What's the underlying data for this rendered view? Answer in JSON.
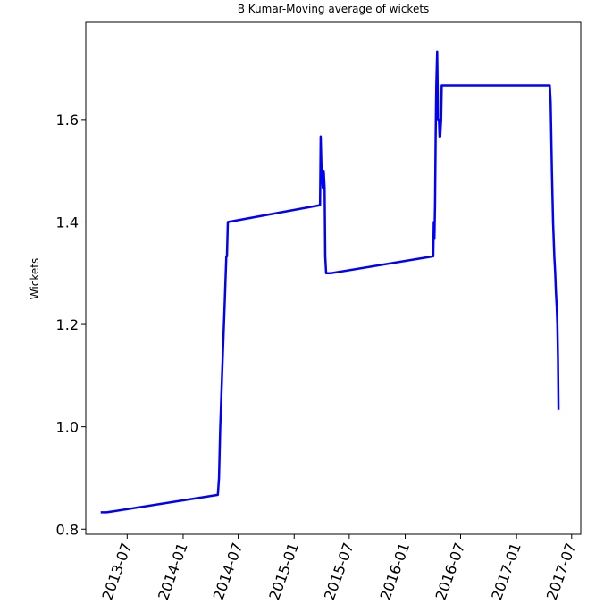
{
  "chart_data": {
    "type": "line",
    "title": "B Kumar-Moving average of wickets",
    "ylabel": "Wickets",
    "xlabel": "",
    "xlim": [
      "2013-02-15",
      "2017-07-31"
    ],
    "ylim": [
      0.79,
      1.79
    ],
    "yticks": [
      0.8,
      1.0,
      1.2,
      1.4,
      1.6
    ],
    "ytick_labels": [
      "0.8",
      "1.0",
      "1.2",
      "1.4",
      "1.6"
    ],
    "xticks": [
      "2013-07-01",
      "2014-01-01",
      "2014-07-01",
      "2015-01-01",
      "2015-07-01",
      "2016-01-01",
      "2016-07-01",
      "2017-01-01",
      "2017-07-01"
    ],
    "xtick_labels": [
      "2013-07",
      "2014-01",
      "2014-07",
      "2015-01",
      "2015-07",
      "2016-01",
      "2016-07",
      "2017-01",
      "2017-07"
    ],
    "grid": false,
    "series_color": "#0000ff",
    "series": [
      {
        "x": [
          "2013-04-05",
          "2013-04-25",
          "2014-04-25",
          "2014-04-29",
          "2014-05-03",
          "2014-05-11",
          "2014-05-17",
          "2014-05-23",
          "2014-05-25",
          "2014-05-28",
          "2015-03-27",
          "2015-03-29",
          "2015-04-01",
          "2015-04-05",
          "2015-04-08",
          "2015-04-11",
          "2015-04-13",
          "2015-04-16",
          "2015-04-22",
          "2015-04-30",
          "2016-04-02",
          "2016-04-04",
          "2016-04-06",
          "2016-04-08",
          "2016-04-10",
          "2016-04-12",
          "2016-04-15",
          "2016-04-18",
          "2016-04-21",
          "2016-04-23",
          "2016-04-25",
          "2016-04-28",
          "2016-04-30",
          "2016-05-03",
          "2016-05-08",
          "2016-05-13",
          "2017-04-20",
          "2017-04-23",
          "2017-04-27",
          "2017-05-01",
          "2017-05-05",
          "2017-05-08",
          "2017-05-10",
          "2017-05-13",
          "2017-05-15",
          "2017-05-17",
          "2017-05-19"
        ],
        "y": [
          0.833,
          0.833,
          0.867,
          0.9,
          1.0,
          1.133,
          1.233,
          1.333,
          1.333,
          1.4,
          1.433,
          1.567,
          1.5,
          1.467,
          1.5,
          1.467,
          1.333,
          1.3,
          1.3,
          1.3,
          1.333,
          1.4,
          1.367,
          1.433,
          1.567,
          1.667,
          1.733,
          1.6,
          1.6,
          1.567,
          1.567,
          1.6,
          1.667,
          1.667,
          1.667,
          1.667,
          1.667,
          1.633,
          1.5,
          1.4,
          1.333,
          1.3,
          1.267,
          1.233,
          1.2,
          1.133,
          1.033
        ]
      }
    ]
  }
}
